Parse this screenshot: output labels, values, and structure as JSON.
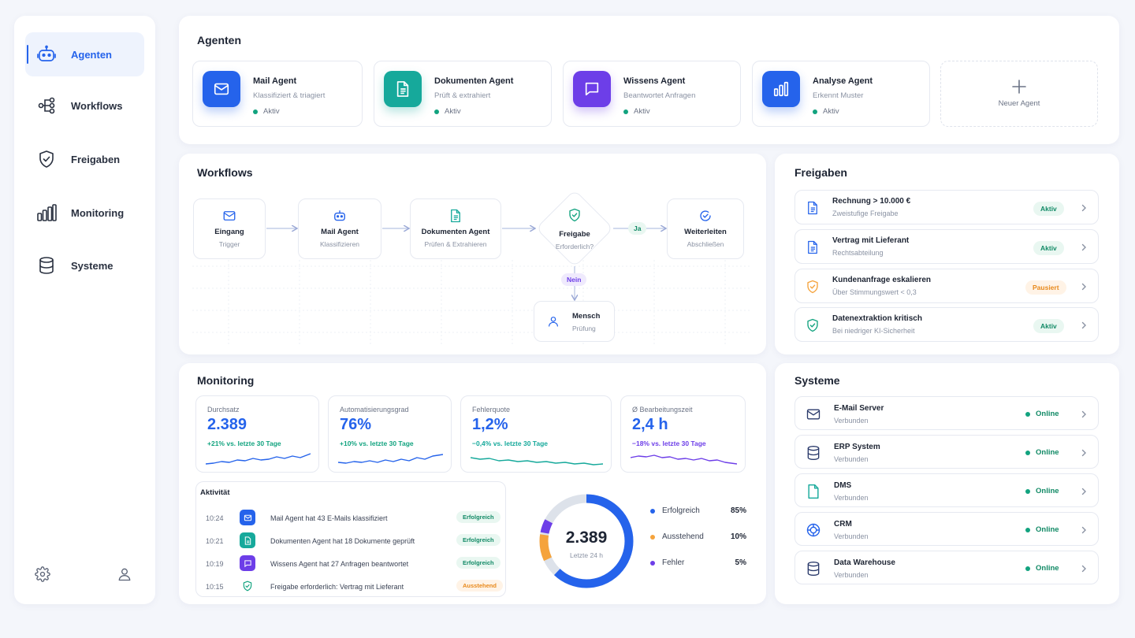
{
  "colors": {
    "accent": "#2563eb",
    "success": "#12a37f",
    "warning": "#f5a33c",
    "purple": "#6d3ee8",
    "teal": "#16a99b"
  },
  "sidebar": {
    "items": [
      {
        "label": "Agenten",
        "icon": "robot-icon",
        "active": true
      },
      {
        "label": "Workflows",
        "icon": "workflow-icon"
      },
      {
        "label": "Freigaben",
        "icon": "shield-check-icon"
      },
      {
        "label": "Monitoring",
        "icon": "bar-chart-icon"
      },
      {
        "label": "Systeme",
        "icon": "database-icon"
      }
    ],
    "footer_icons": [
      "gear-icon",
      "user-icon"
    ]
  },
  "agents": {
    "title": "Agenten",
    "items": [
      {
        "name": "Mail Agent",
        "desc": "Klassifiziert & triagiert",
        "status": "Aktiv",
        "icon": "mail-icon"
      },
      {
        "name": "Dokumenten Agent",
        "desc": "Prüft & extrahiert",
        "status": "Aktiv",
        "icon": "document-icon"
      },
      {
        "name": "Wissens Agent",
        "desc": "Beantwortet Anfragen",
        "status": "Aktiv",
        "icon": "chat-icon"
      },
      {
        "name": "Analyse Agent",
        "desc": "Erkennt Muster",
        "status": "Aktiv",
        "icon": "bar-chart-icon"
      }
    ],
    "new_label": "Neuer Agent"
  },
  "workflows": {
    "title": "Workflows",
    "nodes": [
      {
        "title": "Eingang",
        "sub": "Trigger"
      },
      {
        "title": "Mail Agent",
        "sub": "Klassifizieren"
      },
      {
        "title": "Dokumenten Agent",
        "sub": "Prüfen & Extrahieren"
      },
      {
        "title": "Freigabe",
        "sub": "Erforderlich?"
      },
      {
        "title": "Weiterleiten",
        "sub": "Abschließen"
      },
      {
        "title": "Mensch",
        "sub": "Prüfung"
      }
    ],
    "yes_label": "Ja",
    "no_label": "Nein"
  },
  "approvals": {
    "title": "Freigaben",
    "items": [
      {
        "title": "Rechnung > 10.000 €",
        "sub": "Zweistufige Freigabe",
        "status": "Aktiv"
      },
      {
        "title": "Vertrag mit Lieferant",
        "sub": "Rechtsabteilung",
        "status": "Aktiv"
      },
      {
        "title": "Kundenanfrage eskalieren",
        "sub": "Über Stimmungswert < 0,3",
        "status": "Pausiert"
      },
      {
        "title": "Datenextraktion kritisch",
        "sub": "Bei niedriger KI-Sicherheit",
        "status": "Aktiv"
      }
    ]
  },
  "monitoring": {
    "title": "Monitoring",
    "metrics": [
      {
        "label": "Durchsatz",
        "value": "2.389",
        "delta": "+21% vs. letzte 30 Tage"
      },
      {
        "label": "Automatisierungsgrad",
        "value": "76%",
        "delta": "+10% vs. letzte 30 Tage"
      },
      {
        "label": "Fehlerquote",
        "value": "1,2%",
        "delta": "−0,4% vs. letzte 30 Tage"
      },
      {
        "label": "Ø Bearbeitungszeit",
        "value": "2,4 h",
        "delta": "−18% vs. letzte 30 Tage"
      }
    ],
    "activity": {
      "title": "Aktivität",
      "rows": [
        {
          "time": "10:24",
          "text": "Mail Agent hat 43 E-Mails klassifiziert",
          "status": "Erfolgreich"
        },
        {
          "time": "10:21",
          "text": "Dokumenten Agent hat 18 Dokumente geprüft",
          "status": "Erfolgreich"
        },
        {
          "time": "10:19",
          "text": "Wissens Agent hat 27 Anfragen beantwortet",
          "status": "Erfolgreich"
        },
        {
          "time": "10:15",
          "text": "Freigabe erforderlich: Vertrag mit Lieferant",
          "status": "Ausstehend"
        }
      ]
    },
    "donut": {
      "value": "2.389",
      "sub": "Letzte 24 h",
      "legend": [
        {
          "name": "Erfolgreich",
          "pct": "85%",
          "fraction": 0.85,
          "color": "#2563eb"
        },
        {
          "name": "Ausstehend",
          "pct": "10%",
          "fraction": 0.1,
          "color": "#f5a33c"
        },
        {
          "name": "Fehler",
          "pct": "5%",
          "fraction": 0.05,
          "color": "#6d3ee8"
        }
      ]
    }
  },
  "systems": {
    "title": "Systeme",
    "items": [
      {
        "name": "E-Mail Server",
        "sub": "Verbunden",
        "status": "Online",
        "icon": "mail-icon"
      },
      {
        "name": "ERP System",
        "sub": "Verbunden",
        "status": "Online",
        "icon": "database-icon"
      },
      {
        "name": "DMS",
        "sub": "Verbunden",
        "status": "Online",
        "icon": "file-icon"
      },
      {
        "name": "CRM",
        "sub": "Verbunden",
        "status": "Online",
        "icon": "crm-icon"
      },
      {
        "name": "Data Warehouse",
        "sub": "Verbunden",
        "status": "Online",
        "icon": "database-icon"
      }
    ]
  }
}
